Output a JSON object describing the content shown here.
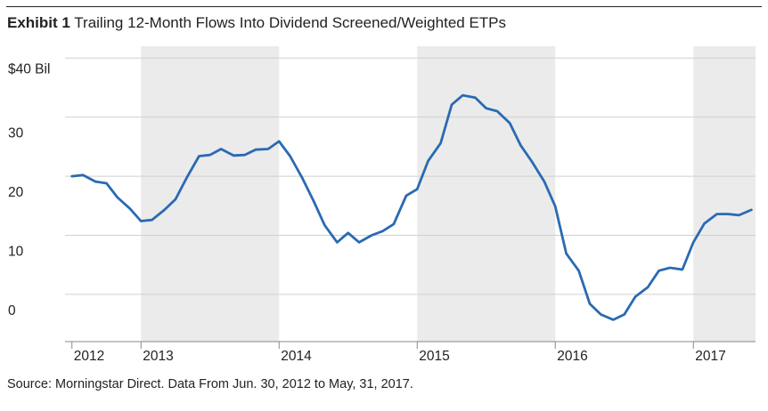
{
  "header": {
    "exhibit": "Exhibit 1",
    "title": "Trailing 12-Month Flows Into Dividend Screened/Weighted ETPs"
  },
  "footer": {
    "source": "Source: Morningstar Direct. Data From Jun. 30, 2012 to May, 31, 2017."
  },
  "chart_data": {
    "type": "line",
    "title": "Trailing 12-Month Flows Into Dividend Screened/Weighted ETPs",
    "xlabel": "",
    "ylabel": "",
    "y_tick_labels": [
      "$40 Bil",
      "30",
      "20",
      "10",
      "0"
    ],
    "y_tick_values": [
      40,
      30,
      20,
      10,
      0
    ],
    "ylim": [
      -8,
      42
    ],
    "x_tick_labels": [
      "2012",
      "2013",
      "2014",
      "2015",
      "2016",
      "2017"
    ],
    "x_tick_positions": [
      2012.5,
      2013,
      2014,
      2015,
      2016,
      2017
    ],
    "xlim": [
      2012.45,
      2017.45
    ],
    "shaded_year_bands": [
      [
        2013,
        2014
      ],
      [
        2015,
        2016
      ],
      [
        2017,
        2017.45
      ]
    ],
    "grid": true,
    "line_color": "#2a6ab2",
    "band_color": "#ebebeb",
    "series": [
      {
        "x": [
          2012.5,
          2012.58,
          2012.67,
          2012.75,
          2012.83,
          2012.92,
          2013.0,
          2013.08,
          2013.17,
          2013.25,
          2013.33,
          2013.42,
          2013.5,
          2013.58,
          2013.67,
          2013.75,
          2013.83,
          2013.92,
          2014.0,
          2014.08,
          2014.17,
          2014.25,
          2014.33,
          2014.42,
          2014.5,
          2014.58,
          2014.67,
          2014.75,
          2014.83,
          2014.92,
          2015.0,
          2015.08,
          2015.17,
          2015.25,
          2015.33,
          2015.42,
          2015.5,
          2015.58,
          2015.67,
          2015.75,
          2015.83,
          2015.92,
          2016.0,
          2016.08,
          2016.17,
          2016.25,
          2016.33,
          2016.42,
          2016.5,
          2016.58,
          2016.67,
          2016.75,
          2016.83,
          2016.92,
          2017.0,
          2017.08,
          2017.17,
          2017.25,
          2017.33,
          2017.42
        ],
        "values": [
          20.0,
          20.2,
          19.1,
          18.8,
          16.4,
          14.5,
          12.4,
          12.6,
          14.3,
          16.1,
          19.7,
          23.4,
          23.6,
          24.6,
          23.5,
          23.6,
          24.5,
          24.6,
          25.9,
          23.4,
          19.6,
          15.8,
          11.7,
          8.8,
          10.4,
          8.8,
          10.0,
          10.7,
          11.9,
          16.7,
          17.8,
          22.6,
          25.6,
          32.1,
          33.7,
          33.3,
          31.5,
          31.0,
          29.0,
          25.2,
          22.5,
          19.1,
          14.9,
          6.9,
          4.0,
          -1.6,
          -3.4,
          -4.3,
          -3.4,
          -0.4,
          1.2,
          4.0,
          4.5,
          4.2,
          8.8,
          12.0,
          13.6,
          13.6,
          13.4,
          14.3
        ]
      }
    ]
  }
}
